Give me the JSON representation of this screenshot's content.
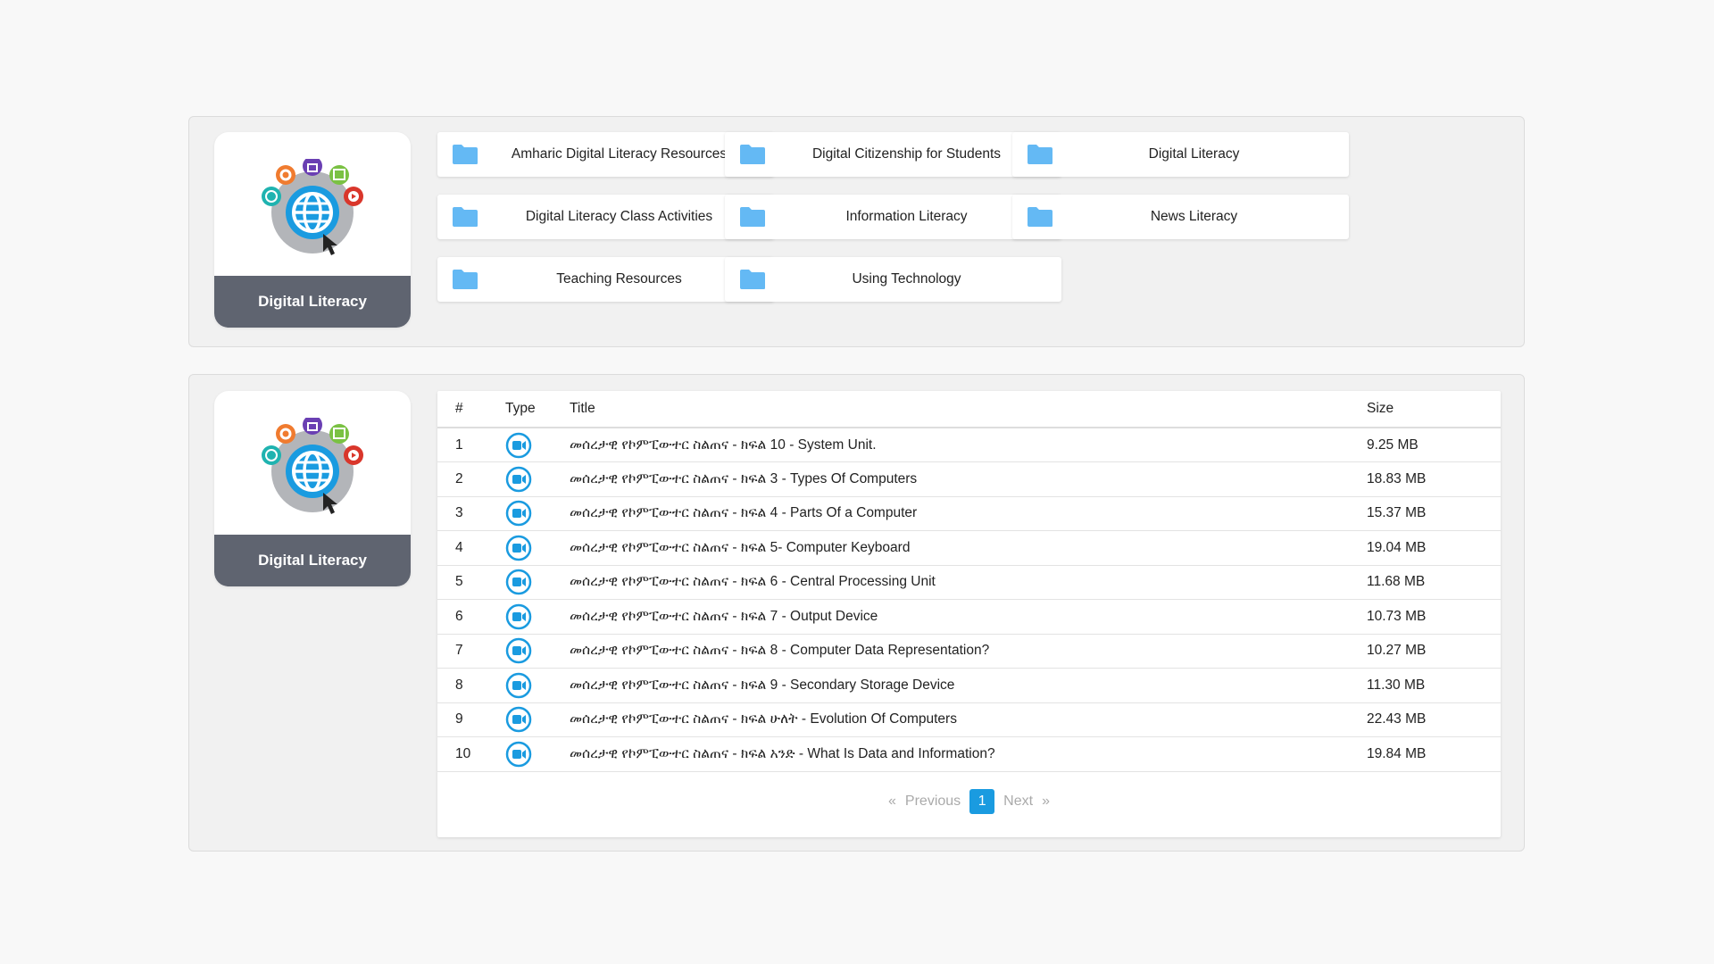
{
  "colors": {
    "accent": "#1a9be0",
    "folder": "#64b9f4",
    "logo_band": "#5f6470"
  },
  "category_card": {
    "label": "Digital Literacy",
    "icon": "digital-literacy-globe-logo"
  },
  "folders": [
    {
      "label": "Amharic Digital Literacy Resources",
      "icon": "folder-icon"
    },
    {
      "label": "Digital Citizenship for Students",
      "icon": "folder-icon"
    },
    {
      "label": "Digital Literacy",
      "icon": "folder-icon"
    },
    {
      "label": "Digital Literacy Class Activities",
      "icon": "folder-icon"
    },
    {
      "label": "Information Literacy",
      "icon": "folder-icon"
    },
    {
      "label": "News Literacy",
      "icon": "folder-icon"
    },
    {
      "label": "Teaching Resources",
      "icon": "folder-icon"
    },
    {
      "label": "Using Technology",
      "icon": "folder-icon"
    }
  ],
  "table": {
    "headers": [
      "#",
      "Type",
      "Title",
      "Size"
    ],
    "rows": [
      {
        "n": "1",
        "type": "video",
        "title": "መሰረታዊ የኮምፒውተር ስልጠና - ክፍል 10 - System Unit.",
        "size": "9.25 MB"
      },
      {
        "n": "2",
        "type": "video",
        "title": "መሰረታዊ የኮምፒውተር ስልጠና - ክፍል 3 - Types Of Computers",
        "size": "18.83 MB"
      },
      {
        "n": "3",
        "type": "video",
        "title": "መሰረታዊ የኮምፒውተር ስልጠና - ክፍል 4 - Parts Of a Computer",
        "size": "15.37 MB"
      },
      {
        "n": "4",
        "type": "video",
        "title": "መሰረታዊ የኮምፒውተር ስልጠና - ክፍል 5- Computer Keyboard",
        "size": "19.04 MB"
      },
      {
        "n": "5",
        "type": "video",
        "title": "መሰረታዊ የኮምፒውተር ስልጠና - ክፍል 6 - Central Processing Unit",
        "size": "11.68 MB"
      },
      {
        "n": "6",
        "type": "video",
        "title": "መሰረታዊ የኮምፒውተር ስልጠና - ክፍል 7 - Output Device",
        "size": "10.73 MB"
      },
      {
        "n": "7",
        "type": "video",
        "title": "መሰረታዊ የኮምፒውተር ስልጠና - ክፍል 8 - Computer Data Representation?",
        "size": "10.27 MB"
      },
      {
        "n": "8",
        "type": "video",
        "title": "መሰረታዊ የኮምፒውተር ስልጠና - ክፍል 9 - Secondary Storage Device",
        "size": "11.30 MB"
      },
      {
        "n": "9",
        "type": "video",
        "title": "መሰረታዊ የኮምፒውተር ስልጠና - ክፍል ሁለት - Evolution Of Computers",
        "size": "22.43 MB"
      },
      {
        "n": "10",
        "type": "video",
        "title": "መሰረታዊ የኮምፒውተር ስልጠና - ክፍል አንድ - What Is Data and Information?",
        "size": "19.84 MB"
      }
    ]
  },
  "pagination": {
    "first": "«",
    "previous": "Previous",
    "current": "1",
    "next": "Next",
    "last": "»"
  }
}
